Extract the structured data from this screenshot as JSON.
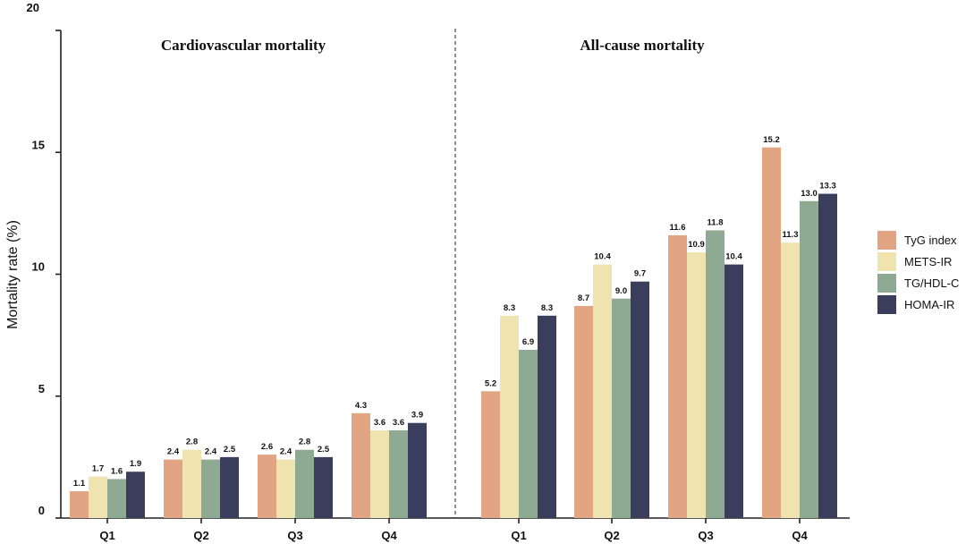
{
  "chart_data": {
    "type": "bar",
    "ylabel": "Mortality rate (%)",
    "xlabel": "",
    "ylim": [
      0,
      20
    ],
    "yticks": [
      "0",
      "5",
      "10",
      "15",
      "20"
    ],
    "grid": false,
    "legend_position": "right",
    "categories": [
      "Q1",
      "Q2",
      "Q3",
      "Q4"
    ],
    "panels": [
      {
        "title": "Cardiovascular mortality",
        "series": [
          {
            "name": "TyG index",
            "values": [
              1.1,
              2.4,
              2.6,
              4.3
            ]
          },
          {
            "name": "METS-IR",
            "values": [
              1.7,
              2.8,
              2.4,
              3.6
            ]
          },
          {
            "name": "TG/HDL-C",
            "values": [
              1.6,
              2.4,
              2.8,
              3.6
            ]
          },
          {
            "name": "HOMA-IR",
            "values": [
              1.9,
              2.5,
              2.5,
              3.9
            ]
          }
        ],
        "labels": [
          [
            "1.1",
            "2.4",
            "2.6",
            "4.3"
          ],
          [
            "1.7",
            "2.8",
            "2.4",
            "3.6"
          ],
          [
            "1.6",
            "2.4",
            "2.8",
            "3.6"
          ],
          [
            "1.9",
            "2.5",
            "2.5",
            "3.9"
          ]
        ]
      },
      {
        "title": "All-cause mortality",
        "series": [
          {
            "name": "TyG index",
            "values": [
              5.2,
              8.7,
              11.6,
              15.2
            ]
          },
          {
            "name": "METS-IR",
            "values": [
              8.3,
              10.4,
              10.9,
              11.3
            ]
          },
          {
            "name": "TG/HDL-C",
            "values": [
              6.9,
              9.0,
              11.8,
              13.0
            ]
          },
          {
            "name": "HOMA-IR",
            "values": [
              8.3,
              9.7,
              10.4,
              13.3
            ]
          }
        ],
        "labels": [
          [
            "5.2",
            "8.7",
            "11.6",
            "15.2"
          ],
          [
            "8.3",
            "10.4",
            "10.9",
            "11.3"
          ],
          [
            "6.9",
            "9.0",
            "11.8",
            "13.0"
          ],
          [
            "8.3",
            "9.7",
            "10.4",
            "13.3"
          ]
        ]
      }
    ],
    "legend": [
      "TyG index",
      "METS-IR",
      "TG/HDL-C",
      "HOMA-IR"
    ],
    "colors": [
      "#E2A584",
      "#EFE4B0",
      "#8FAA92",
      "#3A3D5C"
    ]
  }
}
